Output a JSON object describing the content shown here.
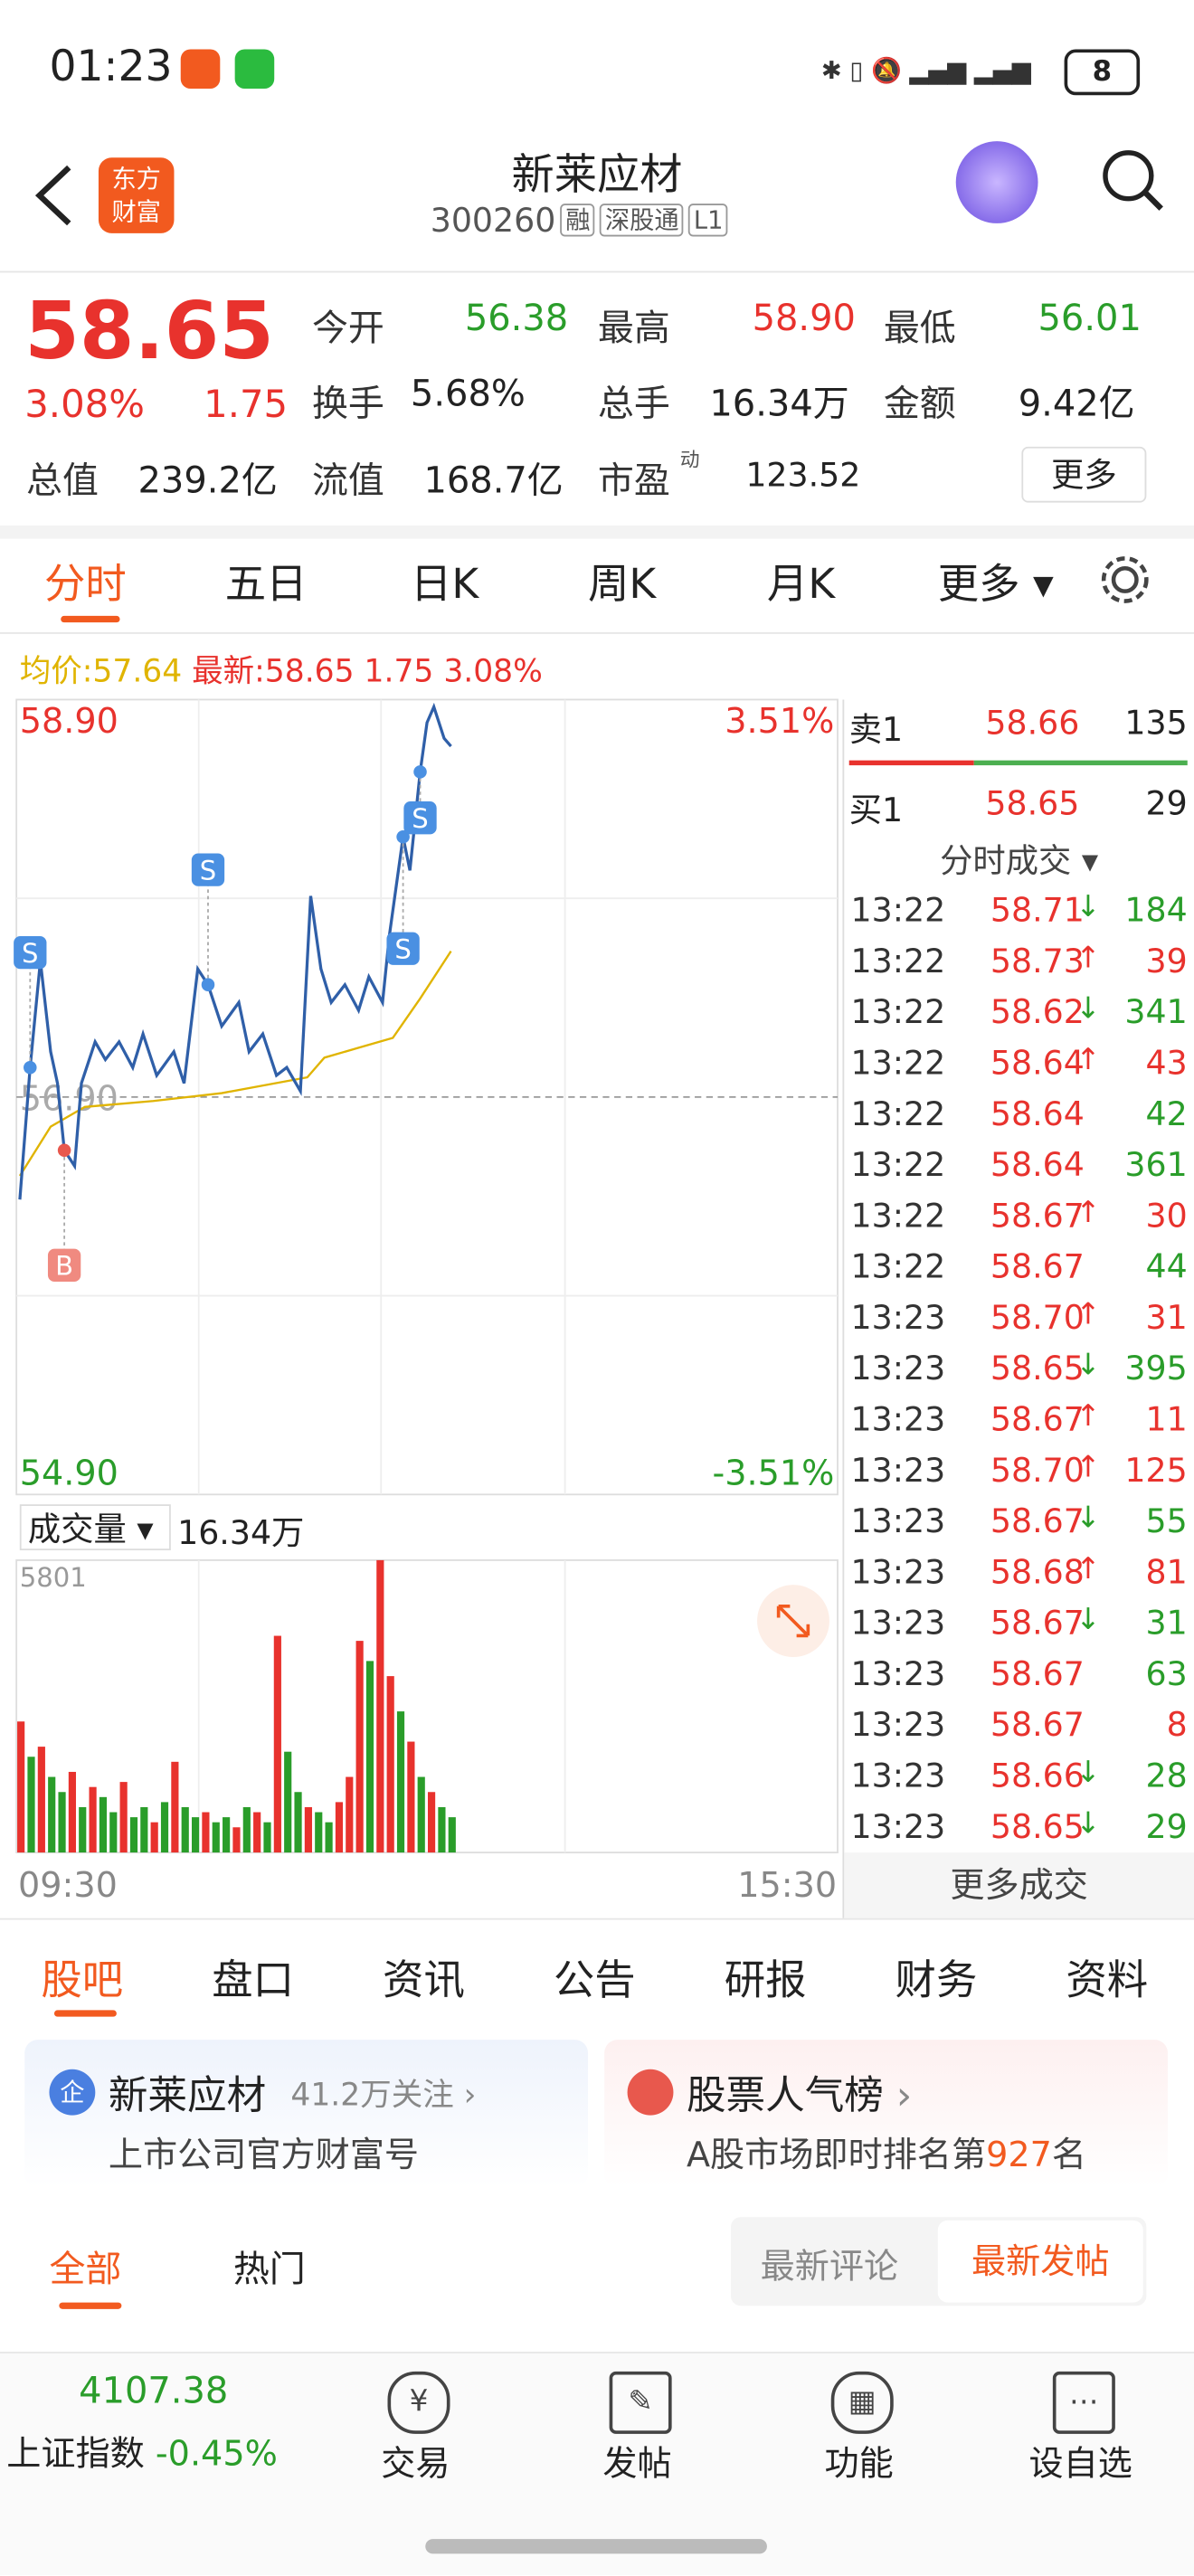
{
  "status": {
    "time": "01:23",
    "battery": "8"
  },
  "header": {
    "title": "新莱应材",
    "code": "300260",
    "tags": [
      "融",
      "深股通",
      "L1"
    ]
  },
  "quote": {
    "price": "58.65",
    "pct": "3.08%",
    "change": "1.75",
    "fields": [
      {
        "label": "今开",
        "value": "56.38"
      },
      {
        "label": "最高",
        "value": "58.90"
      },
      {
        "label": "最低",
        "value": "56.01"
      },
      {
        "label": "换手",
        "value": "5.68%"
      },
      {
        "label": "总手",
        "value": "16.34万"
      },
      {
        "label": "金额",
        "value": "9.42亿"
      },
      {
        "label": "总值",
        "value": "239.2亿"
      },
      {
        "label": "流值",
        "value": "168.7亿"
      },
      {
        "label": "市盈",
        "sup": "动",
        "value": "123.52"
      }
    ],
    "more": "更多"
  },
  "tabs": [
    "分时",
    "五日",
    "日K",
    "周K",
    "月K",
    "更多"
  ],
  "legend": {
    "avg_label": "均价:",
    "avg": "57.64",
    "last_label": "最新:",
    "last": "58.65 1.75 3.08%"
  },
  "chart_data": [
    {
      "type": "line",
      "xlim": [
        0,
        240
      ],
      "ylim": [
        54.9,
        58.9
      ],
      "yticks": [
        {
          "value": 58.9,
          "label": "58.90"
        },
        {
          "value": 56.9,
          "label": "56.90"
        },
        {
          "value": 54.9,
          "label": "54.90"
        }
      ],
      "y2lim": [
        -3.51,
        3.51
      ],
      "y2ticks": [
        {
          "value": 3.51,
          "label": "3.51%"
        },
        {
          "value": -3.51,
          "label": "-3.51%"
        }
      ],
      "xlabels": [
        "09:30",
        "15:30"
      ],
      "series": [
        {
          "color": "#2f5fa8",
          "x": [
            1,
            4,
            7,
            10,
            12,
            14,
            17,
            19,
            23,
            26,
            30,
            34,
            37,
            41,
            46,
            49,
            53,
            56,
            60,
            65,
            68,
            72,
            76,
            79,
            83,
            86,
            89,
            92,
            96,
            100,
            103,
            107,
            109,
            113,
            115,
            118,
            120,
            122,
            125,
            127
          ],
          "values": [
            56.38,
            57.05,
            57.59,
            57.13,
            56.97,
            56.63,
            56.55,
            56.97,
            57.18,
            57.09,
            57.18,
            57.05,
            57.22,
            57.01,
            57.13,
            56.97,
            57.55,
            57.47,
            57.26,
            57.38,
            57.13,
            57.22,
            57.01,
            57.05,
            56.93,
            57.92,
            57.55,
            57.38,
            57.47,
            57.34,
            57.51,
            57.38,
            57.72,
            58.22,
            58.05,
            58.55,
            58.8,
            58.88,
            58.72,
            58.68
          ]
        },
        {
          "color": "#e0b400",
          "x": [
            1,
            10,
            20,
            40,
            60,
            85,
            90,
            100,
            110,
            118,
            127
          ],
          "values": [
            56.5,
            56.75,
            56.85,
            56.88,
            56.92,
            57.0,
            57.1,
            57.15,
            57.2,
            57.4,
            57.64
          ]
        }
      ],
      "annotations": [
        {
          "label": "S",
          "x": 4,
          "y": 57.05
        },
        {
          "label": "B",
          "x": 14,
          "y": 56.63
        },
        {
          "label": "S",
          "x": 56,
          "y": 57.47
        },
        {
          "label": "S",
          "x": 118,
          "y": 58.55
        },
        {
          "label": "S",
          "x": 113,
          "y": 58.22
        }
      ]
    },
    {
      "type": "bar",
      "title": "成交量",
      "total": "16.34万",
      "xlim": [
        0,
        240
      ],
      "ylim": [
        0,
        5801
      ],
      "yticks": [
        5801
      ],
      "x": [
        0,
        3,
        6,
        9,
        12,
        15,
        18,
        21,
        24,
        27,
        30,
        33,
        36,
        39,
        42,
        45,
        48,
        51,
        54,
        57,
        60,
        63,
        66,
        69,
        72,
        75,
        78,
        81,
        84,
        87,
        90,
        93,
        96,
        99,
        102,
        105,
        108,
        111,
        114,
        117,
        120,
        123,
        126
      ],
      "values": [
        2600,
        1900,
        2100,
        1500,
        1200,
        1600,
        900,
        1300,
        1100,
        800,
        1400,
        700,
        900,
        600,
        1000,
        1800,
        900,
        700,
        800,
        600,
        700,
        500,
        900,
        800,
        600,
        4300,
        2000,
        1200,
        900,
        800,
        600,
        1000,
        1500,
        4200,
        3800,
        5801,
        3500,
        2800,
        2200,
        1500,
        1200,
        900,
        700
      ],
      "colors": [
        "#e8322d",
        "#2a9d2a",
        "#e8322d",
        "#2a9d2a",
        "#2a9d2a",
        "#e8322d",
        "#2a9d2a",
        "#e8322d",
        "#2a9d2a",
        "#2a9d2a",
        "#e8322d",
        "#2a9d2a",
        "#2a9d2a",
        "#e8322d",
        "#2a9d2a",
        "#e8322d",
        "#2a9d2a",
        "#2a9d2a",
        "#e8322d",
        "#2a9d2a",
        "#2a9d2a",
        "#e8322d",
        "#2a9d2a",
        "#e8322d",
        "#2a9d2a",
        "#e8322d",
        "#2a9d2a",
        "#2a9d2a",
        "#e8322d",
        "#2a9d2a",
        "#2a9d2a",
        "#e8322d",
        "#e8322d",
        "#e8322d",
        "#2a9d2a",
        "#e8322d",
        "#e8322d",
        "#2a9d2a",
        "#e8322d",
        "#2a9d2a",
        "#e8322d",
        "#2a9d2a",
        "#2a9d2a"
      ]
    }
  ],
  "book": {
    "ask": {
      "label": "卖1",
      "price": "58.66",
      "vol": "135"
    },
    "bid": {
      "label": "买1",
      "price": "58.65",
      "vol": "29"
    },
    "title": "分时成交",
    "more": "更多成交",
    "trades": [
      {
        "t": "13:22",
        "p": "58.71",
        "a": "↓",
        "v": "184",
        "c": "#2a9d2a"
      },
      {
        "t": "13:22",
        "p": "58.73",
        "a": "↑",
        "v": "39",
        "c": "#e8322d"
      },
      {
        "t": "13:22",
        "p": "58.62",
        "a": "↓",
        "v": "341",
        "c": "#2a9d2a"
      },
      {
        "t": "13:22",
        "p": "58.64",
        "a": "↑",
        "v": "43",
        "c": "#e8322d"
      },
      {
        "t": "13:22",
        "p": "58.64",
        "v": "42",
        "c": "#2a9d2a"
      },
      {
        "t": "13:22",
        "p": "58.64",
        "v": "361",
        "c": "#2a9d2a"
      },
      {
        "t": "13:22",
        "p": "58.67",
        "a": "↑",
        "v": "30",
        "c": "#e8322d"
      },
      {
        "t": "13:22",
        "p": "58.67",
        "v": "44",
        "c": "#2a9d2a"
      },
      {
        "t": "13:23",
        "p": "58.70",
        "a": "↑",
        "v": "31",
        "c": "#e8322d"
      },
      {
        "t": "13:23",
        "p": "58.65",
        "a": "↓",
        "v": "395",
        "c": "#2a9d2a"
      },
      {
        "t": "13:23",
        "p": "58.67",
        "a": "↑",
        "v": "11",
        "c": "#e8322d"
      },
      {
        "t": "13:23",
        "p": "58.70",
        "a": "↑",
        "v": "125",
        "c": "#e8322d"
      },
      {
        "t": "13:23",
        "p": "58.67",
        "a": "↓",
        "v": "55",
        "c": "#2a9d2a"
      },
      {
        "t": "13:23",
        "p": "58.68",
        "a": "↑",
        "v": "81",
        "c": "#e8322d"
      },
      {
        "t": "13:23",
        "p": "58.67",
        "a": "↓",
        "v": "31",
        "c": "#2a9d2a"
      },
      {
        "t": "13:23",
        "p": "58.67",
        "v": "63",
        "c": "#2a9d2a"
      },
      {
        "t": "13:23",
        "p": "58.67",
        "v": "8",
        "c": "#e8322d"
      },
      {
        "t": "13:23",
        "p": "58.66",
        "a": "↓",
        "v": "28",
        "c": "#2a9d2a"
      },
      {
        "t": "13:23",
        "p": "58.65",
        "a": "↓",
        "v": "29",
        "c": "#2a9d2a"
      }
    ]
  },
  "lower_tabs": [
    "股吧",
    "盘口",
    "资讯",
    "公告",
    "研报",
    "财务",
    "资料"
  ],
  "cards": [
    {
      "title": "新莱应材",
      "meta": "41.2万关注",
      "sub": "上市公司官方财富号"
    },
    {
      "title": "股票人气榜",
      "sub_pre": "A股市场即时排名第",
      "rank": "927",
      "sub_post": "名"
    }
  ],
  "filters": {
    "left": [
      "全部",
      "热门"
    ],
    "right": [
      "最新评论",
      "最新发帖"
    ]
  },
  "bottom": {
    "index_value": "4107.38",
    "index_name": "上证指数",
    "index_change": "-0.45%",
    "items": [
      "交易",
      "发帖",
      "功能",
      "设自选"
    ]
  }
}
